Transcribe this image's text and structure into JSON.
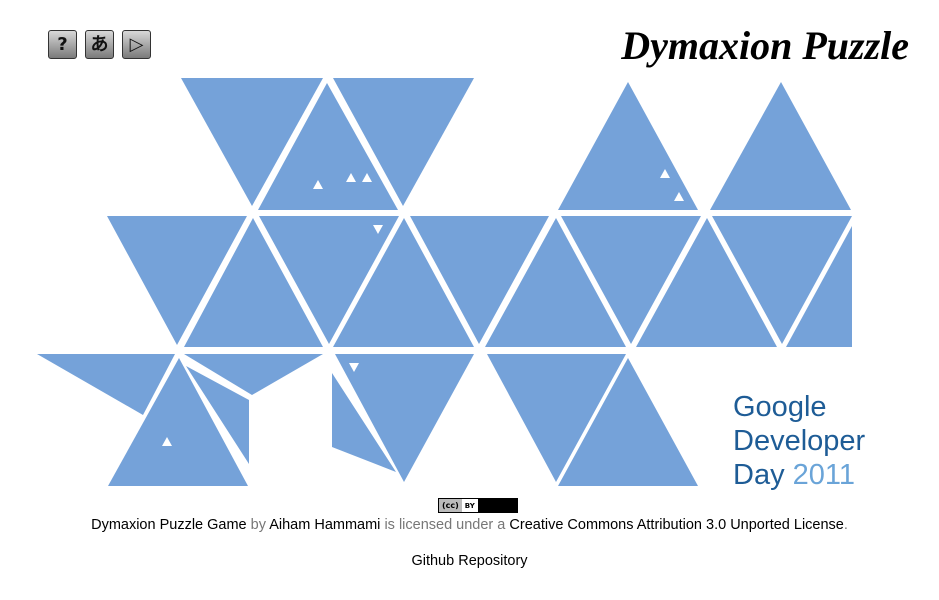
{
  "toolbar": {
    "help_glyph": "?",
    "lang_glyph": "あ",
    "play_glyph": "▷"
  },
  "title": "Dymaxion Puzzle",
  "logo": {
    "line1": "Google",
    "line2": "Developer",
    "line3_word": "Day",
    "line3_year": "2011"
  },
  "license": {
    "badge_cc": "(cc)",
    "badge_by": "BY",
    "work": "Dymaxion Puzzle Game",
    "by": "by",
    "author": "Aiham Hammami",
    "licensed": "is licensed under a",
    "license_name": "Creative Commons Attribution 3.0 Unported License",
    "period": "."
  },
  "github": "Github Repository",
  "colors": {
    "tile": "#75a2d9",
    "background": "#ffffff",
    "marker": "#ffffff"
  },
  "icons": [
    "help-icon",
    "language-icon",
    "play-icon"
  ]
}
